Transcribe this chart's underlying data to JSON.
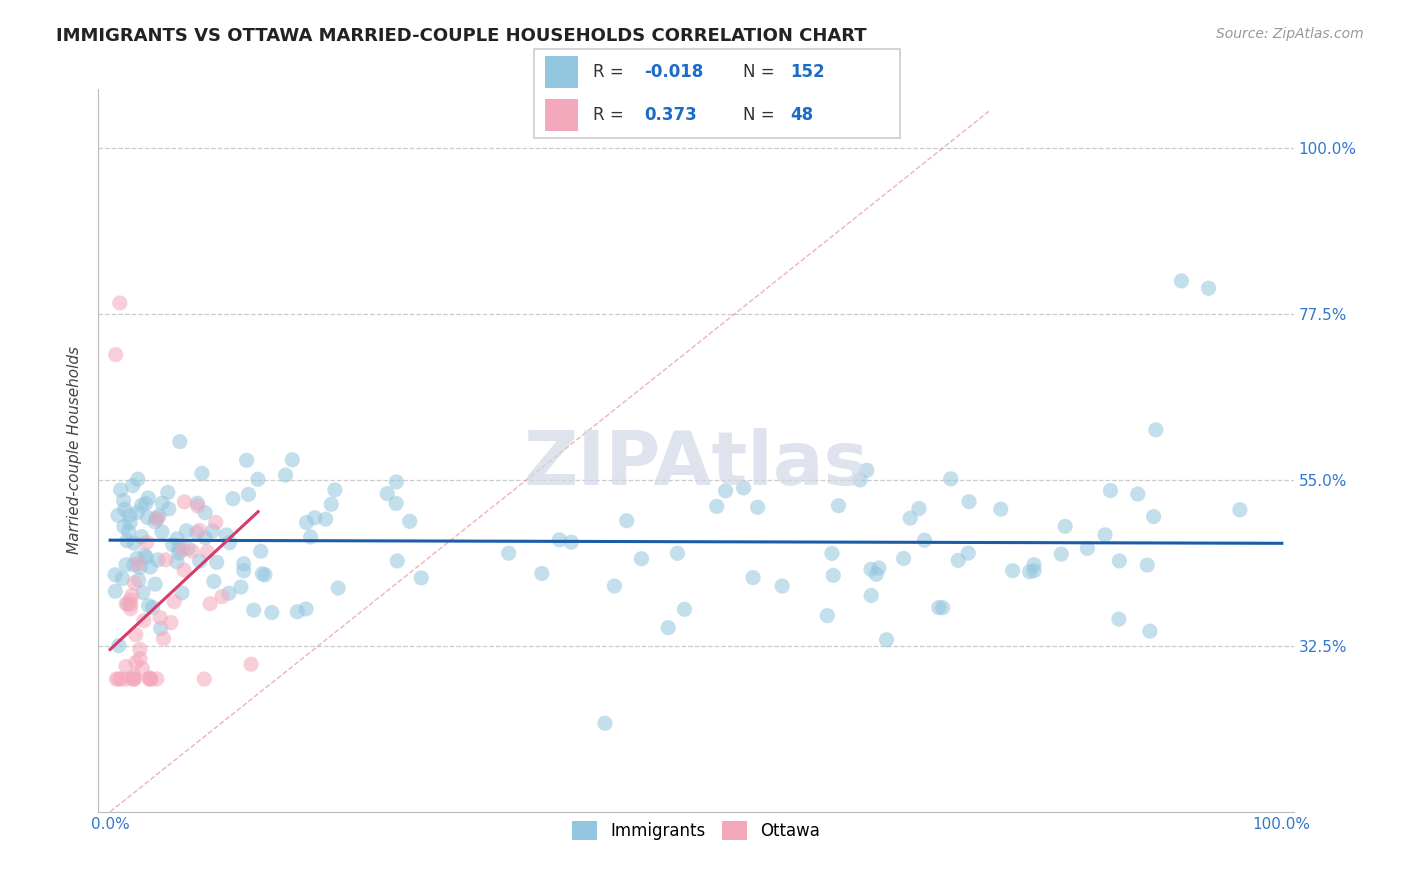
{
  "title": "IMMIGRANTS VS OTTAWA MARRIED-COUPLE HOUSEHOLDS CORRELATION CHART",
  "source_text": "Source: ZipAtlas.com",
  "ylabel": "Married-couple Households",
  "legend_immigrants": "Immigrants",
  "legend_ottawa": "Ottawa",
  "xlim": [
    -0.01,
    1.01
  ],
  "ylim": [
    0.1,
    1.08
  ],
  "yticks": [
    0.325,
    0.55,
    0.775,
    1.0
  ],
  "ytick_labels": [
    "32.5%",
    "55.0%",
    "77.5%",
    "100.0%"
  ],
  "xticks": [
    0.0,
    1.0
  ],
  "xtick_labels": [
    "0.0%",
    "100.0%"
  ],
  "R_immigrants": -0.018,
  "N_immigrants": 152,
  "R_ottawa": 0.373,
  "N_ottawa": 48,
  "blue_color": "#92c5de",
  "blue_line_color": "#1a5ca8",
  "pink_color": "#f4a8bb",
  "pink_line_color": "#d63b6e",
  "pink_dash_color": "#e08090",
  "dot_alpha": 0.55,
  "dot_size": 120,
  "background_color": "#ffffff",
  "grid_color": "#cccccc",
  "title_fontsize": 13,
  "label_fontsize": 11,
  "tick_fontsize": 11,
  "source_fontsize": 10,
  "legend_R_color": "#1a5ca8",
  "legend_N_color": "#1a8fc8",
  "watermark_color": "#d0d8e8"
}
